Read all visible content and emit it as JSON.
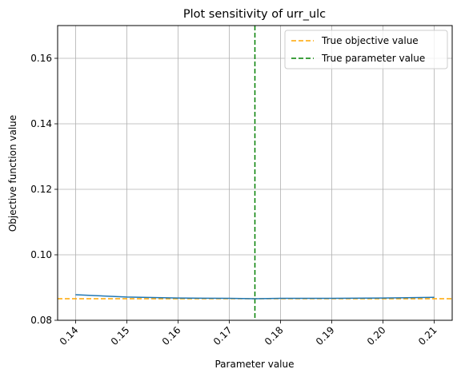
{
  "chart_data": {
    "type": "line",
    "title": "Plot sensitivity of urr_ulc",
    "xlabel": "Parameter value",
    "ylabel": "Objective function value",
    "xlim": [
      0.1365,
      0.2135
    ],
    "ylim": [
      0.08,
      0.17
    ],
    "xticks": [
      0.14,
      0.15,
      0.16,
      0.17,
      0.18,
      0.19,
      0.2,
      0.21
    ],
    "xtick_labels": [
      "0.14",
      "0.15",
      "0.16",
      "0.17",
      "0.18",
      "0.19",
      "0.20",
      "0.21"
    ],
    "yticks": [
      0.08,
      0.1,
      0.12,
      0.14,
      0.16
    ],
    "ytick_labels": [
      "0.08",
      "0.10",
      "0.12",
      "0.14",
      "0.16"
    ],
    "grid": true,
    "legend_position": "top-right",
    "series": [
      {
        "color": "#1f77b4",
        "x": [
          0.14,
          0.15,
          0.16,
          0.17,
          0.175,
          0.18,
          0.19,
          0.2,
          0.21
        ],
        "y": [
          0.0878,
          0.0871,
          0.0868,
          0.0867,
          0.0866,
          0.0867,
          0.0867,
          0.0868,
          0.087
        ]
      }
    ],
    "reference_lines": [
      {
        "label": "True objective value",
        "orientation": "horizontal",
        "value": 0.0866,
        "color": "#ffa500",
        "style": "dashed"
      },
      {
        "label": "True parameter value",
        "orientation": "vertical",
        "value": 0.175,
        "color": "#008000",
        "style": "dashed"
      }
    ]
  }
}
